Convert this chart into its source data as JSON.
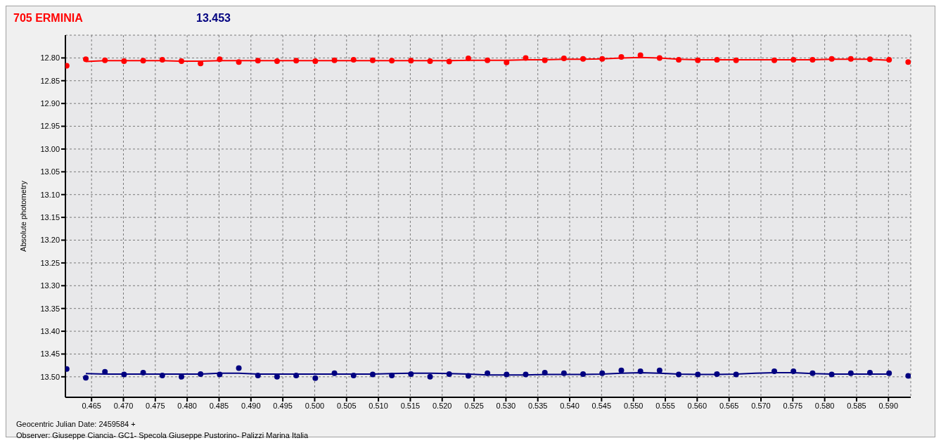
{
  "chart_data": {
    "type": "scatter",
    "title": "705 ERMINIA",
    "subtitle": "13.453",
    "xlabel": "Geocentric Julian Date: 2459584 +",
    "ylabel": "Absolute photometry",
    "annotations": [
      "Observer: Giuseppe Ciancia- GC1- Specola Giuseppe Pustorino- Palizzi Marina Italia"
    ],
    "xlim": [
      0.4609,
      0.5935
    ],
    "ylim": [
      13.545,
      12.75
    ],
    "xticks": [
      {
        "value": 0.465,
        "label": "0.465"
      },
      {
        "value": 0.47,
        "label": "0.470"
      },
      {
        "value": 0.475,
        "label": "0.475"
      },
      {
        "value": 0.48,
        "label": "0.480"
      },
      {
        "value": 0.485,
        "label": "0.485"
      },
      {
        "value": 0.49,
        "label": "0.490"
      },
      {
        "value": 0.495,
        "label": "0.495"
      },
      {
        "value": 0.5,
        "label": "0.500"
      },
      {
        "value": 0.505,
        "label": "0.505"
      },
      {
        "value": 0.51,
        "label": "0.510"
      },
      {
        "value": 0.515,
        "label": "0.515"
      },
      {
        "value": 0.52,
        "label": "0.520"
      },
      {
        "value": 0.525,
        "label": "0.525"
      },
      {
        "value": 0.53,
        "label": "0.530"
      },
      {
        "value": 0.535,
        "label": "0.535"
      },
      {
        "value": 0.54,
        "label": "0.540"
      },
      {
        "value": 0.545,
        "label": "0.545"
      },
      {
        "value": 0.55,
        "label": "0.550"
      },
      {
        "value": 0.555,
        "label": "0.555"
      },
      {
        "value": 0.56,
        "label": "0.560"
      },
      {
        "value": 0.565,
        "label": "0.565"
      },
      {
        "value": 0.57,
        "label": "0.570"
      },
      {
        "value": 0.575,
        "label": "0.575"
      },
      {
        "value": 0.58,
        "label": "0.580"
      },
      {
        "value": 0.585,
        "label": "0.585"
      },
      {
        "value": 0.59,
        "label": "0.590"
      }
    ],
    "yticks": [
      {
        "value": 12.8,
        "label": "12.80"
      },
      {
        "value": 12.85,
        "label": "12.85"
      },
      {
        "value": 12.9,
        "label": "12.90"
      },
      {
        "value": 12.95,
        "label": "12.95"
      },
      {
        "value": 13.0,
        "label": "13.00"
      },
      {
        "value": 13.05,
        "label": "13.05"
      },
      {
        "value": 13.1,
        "label": "13.10"
      },
      {
        "value": 13.15,
        "label": "13.15"
      },
      {
        "value": 13.2,
        "label": "13.20"
      },
      {
        "value": 13.25,
        "label": "13.25"
      },
      {
        "value": 13.3,
        "label": "13.30"
      },
      {
        "value": 13.35,
        "label": "13.35"
      },
      {
        "value": 13.4,
        "label": "13.40"
      },
      {
        "value": 13.45,
        "label": "13.45"
      },
      {
        "value": 13.5,
        "label": "13.50"
      }
    ],
    "grid": true,
    "marker": "circle",
    "legend": false,
    "series": [
      {
        "color": "#ff0000",
        "x": [
          0.4611,
          0.4641,
          0.4671,
          0.4701,
          0.4731,
          0.4761,
          0.4791,
          0.4821,
          0.4851,
          0.4881,
          0.4911,
          0.4941,
          0.4971,
          0.5001,
          0.5031,
          0.5061,
          0.5091,
          0.5121,
          0.5151,
          0.5181,
          0.5211,
          0.5241,
          0.5271,
          0.5301,
          0.5331,
          0.5361,
          0.5391,
          0.5421,
          0.5451,
          0.5481,
          0.5511,
          0.5541,
          0.5571,
          0.5601,
          0.5631,
          0.5661,
          0.5691,
          0.5721,
          0.5751,
          0.5781,
          0.5811,
          0.5841,
          0.5871,
          0.5901,
          0.5931
        ],
        "values": [
          12.817,
          12.803,
          12.805,
          12.807,
          12.806,
          12.804,
          12.807,
          12.812,
          12.803,
          12.809,
          12.806,
          12.807,
          12.806,
          12.807,
          12.805,
          12.804,
          12.805,
          12.806,
          12.806,
          12.807,
          12.808,
          12.801,
          12.805,
          12.81,
          12.8,
          12.805,
          12.801,
          12.802,
          12.802,
          12.798,
          12.794,
          12.8,
          12.804,
          12.805,
          12.804,
          12.805,
          null,
          12.805,
          12.804,
          12.804,
          12.802,
          12.802,
          12.803,
          12.804,
          12.809
        ]
      },
      {
        "type": "line",
        "color": "#ff0000",
        "marker": "none",
        "x": [
          0.4641,
          0.4671,
          0.4701,
          0.4731,
          0.4761,
          0.4791,
          0.4821,
          0.4851,
          0.4881,
          0.4911,
          0.4941,
          0.4971,
          0.5001,
          0.5031,
          0.5061,
          0.5091,
          0.5121,
          0.5151,
          0.5181,
          0.5211,
          0.5241,
          0.5271,
          0.5301,
          0.5331,
          0.5361,
          0.5391,
          0.5421,
          0.5451,
          0.5481,
          0.5511,
          0.5541,
          0.5571,
          0.5601,
          0.5631,
          0.5661,
          0.5691,
          0.5721,
          0.5751,
          0.5781,
          0.5811,
          0.5841,
          0.5871,
          0.5901
        ],
        "values": [
          12.808,
          12.806,
          12.806,
          12.806,
          12.806,
          12.807,
          12.807,
          12.806,
          12.806,
          12.806,
          12.806,
          12.806,
          12.806,
          12.806,
          12.806,
          12.806,
          12.806,
          12.806,
          12.806,
          12.806,
          12.805,
          12.805,
          12.805,
          12.804,
          12.804,
          12.803,
          12.803,
          12.802,
          12.8,
          12.799,
          12.8,
          12.803,
          12.804,
          12.804,
          12.804,
          12.804,
          12.804,
          12.804,
          12.804,
          12.803,
          12.803,
          12.803,
          12.805
        ]
      },
      {
        "color": "#000080",
        "x": [
          0.4611,
          0.4641,
          0.4671,
          0.4701,
          0.4731,
          0.4761,
          0.4791,
          0.4821,
          0.4851,
          0.4881,
          0.4911,
          0.4941,
          0.4971,
          0.5001,
          0.5031,
          0.5061,
          0.5091,
          0.5121,
          0.5151,
          0.5181,
          0.5211,
          0.5241,
          0.5271,
          0.5301,
          0.5331,
          0.5361,
          0.5391,
          0.5421,
          0.5451,
          0.5481,
          0.5511,
          0.5541,
          0.5571,
          0.5601,
          0.5631,
          0.5661,
          0.5691,
          0.5721,
          0.5751,
          0.5781,
          0.5811,
          0.5841,
          0.5871,
          0.5901,
          0.5931
        ],
        "values": [
          13.483,
          13.502,
          13.489,
          13.495,
          13.491,
          13.497,
          13.5,
          13.494,
          13.495,
          13.481,
          13.497,
          13.5,
          13.497,
          13.503,
          13.492,
          13.497,
          13.495,
          13.497,
          13.494,
          13.5,
          13.494,
          13.498,
          13.492,
          13.495,
          13.495,
          13.491,
          13.492,
          13.494,
          13.492,
          13.486,
          13.488,
          13.486,
          13.495,
          13.495,
          13.494,
          13.495,
          null,
          13.488,
          13.488,
          13.492,
          13.495,
          13.492,
          13.491,
          13.492,
          13.498
        ]
      },
      {
        "type": "line",
        "color": "#000080",
        "marker": "none",
        "x": [
          0.4641,
          0.4671,
          0.4701,
          0.4731,
          0.4761,
          0.4791,
          0.4821,
          0.4851,
          0.4881,
          0.4911,
          0.4941,
          0.4971,
          0.5001,
          0.5031,
          0.5061,
          0.5091,
          0.5121,
          0.5151,
          0.5181,
          0.5211,
          0.5241,
          0.5271,
          0.5301,
          0.5331,
          0.5361,
          0.5391,
          0.5421,
          0.5451,
          0.5481,
          0.5511,
          0.5541,
          0.5571,
          0.5601,
          0.5631,
          0.5661,
          0.5691,
          0.5721,
          0.5751,
          0.5781,
          0.5811,
          0.5841,
          0.5871,
          0.5901
        ],
        "values": [
          13.493,
          13.494,
          13.494,
          13.494,
          13.494,
          13.494,
          13.494,
          13.492,
          13.492,
          13.494,
          13.494,
          13.494,
          13.494,
          13.494,
          13.494,
          13.494,
          13.493,
          13.492,
          13.492,
          13.493,
          13.494,
          13.496,
          13.496,
          13.496,
          13.495,
          13.495,
          13.495,
          13.494,
          13.492,
          13.491,
          13.492,
          13.494,
          13.495,
          13.495,
          13.494,
          13.492,
          13.491,
          13.491,
          13.493,
          13.494,
          13.494,
          13.494,
          13.494
        ]
      }
    ]
  }
}
